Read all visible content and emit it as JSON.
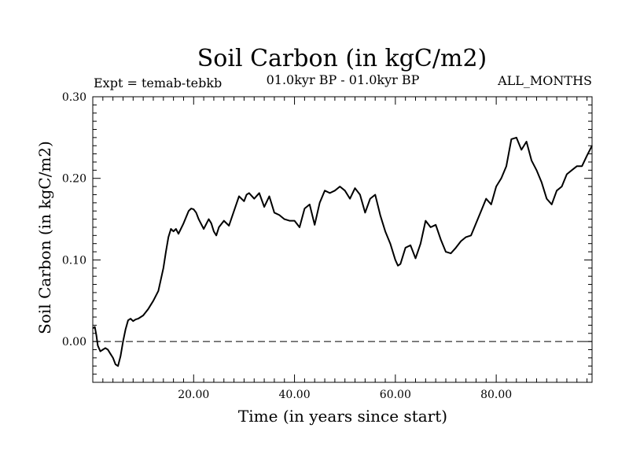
{
  "chart_data": {
    "type": "line",
    "title": "Soil Carbon (in kgC/m2)",
    "subtitle_left": "Expt = temab-tebkb",
    "subtitle_center": "01.0kyr BP - 01.0kyr BP",
    "subtitle_right": "ALL_MONTHS",
    "xlabel": "Time (in years since start)",
    "ylabel": "Soil Carbon (in kgC/m2)",
    "xlim": [
      0,
      99
    ],
    "ylim": [
      -0.05,
      0.3
    ],
    "xticks": [
      20,
      40,
      60,
      80
    ],
    "xtick_labels": [
      "20.00",
      "40.00",
      "60.00",
      "80.00"
    ],
    "yticks": [
      0.0,
      0.1,
      0.2,
      0.3
    ],
    "ytick_labels": [
      "0.00",
      "0.10",
      "0.20",
      "0.30"
    ],
    "reference_line": {
      "y": 0.0,
      "style": "dashed"
    },
    "grid": false,
    "series": [
      {
        "x": [
          0,
          0.4,
          0.7,
          1,
          1.5,
          2,
          2.5,
          3,
          3.5,
          4,
          4.5,
          5,
          5.5,
          6,
          6.5,
          7,
          7.5,
          8,
          8.5,
          9,
          10,
          11,
          12,
          13,
          14,
          14.5,
          15,
          15.5,
          16,
          16.5,
          17,
          18,
          19,
          19.5,
          20,
          20.5,
          21,
          22,
          23,
          23.5,
          24,
          24.5,
          25,
          26,
          27,
          28,
          29,
          30,
          30.5,
          31,
          32,
          33,
          34,
          35,
          36,
          37,
          38,
          39,
          40,
          41,
          42,
          43,
          44,
          45,
          46,
          47,
          48,
          49,
          50,
          51,
          52,
          53,
          54,
          55,
          56,
          57,
          58,
          59,
          60,
          60.5,
          61,
          62,
          63,
          64,
          65,
          66,
          67,
          68,
          69,
          70,
          71,
          72,
          73,
          74,
          75,
          76,
          77,
          78,
          79,
          80,
          81,
          82,
          83,
          84,
          85,
          86,
          87,
          88,
          89,
          90,
          91,
          92,
          93,
          94,
          95,
          96,
          97,
          98,
          99
        ],
        "y": [
          0.016,
          0.018,
          0.008,
          -0.005,
          -0.012,
          -0.01,
          -0.008,
          -0.01,
          -0.015,
          -0.02,
          -0.028,
          -0.03,
          -0.018,
          0.0,
          0.015,
          0.026,
          0.028,
          0.025,
          0.027,
          0.028,
          0.032,
          0.04,
          0.05,
          0.062,
          0.09,
          0.11,
          0.128,
          0.138,
          0.135,
          0.138,
          0.132,
          0.145,
          0.16,
          0.163,
          0.162,
          0.158,
          0.15,
          0.138,
          0.15,
          0.145,
          0.135,
          0.13,
          0.14,
          0.148,
          0.142,
          0.16,
          0.178,
          0.172,
          0.18,
          0.182,
          0.175,
          0.182,
          0.165,
          0.178,
          0.158,
          0.155,
          0.15,
          0.148,
          0.148,
          0.14,
          0.163,
          0.168,
          0.143,
          0.17,
          0.185,
          0.182,
          0.185,
          0.19,
          0.185,
          0.175,
          0.188,
          0.18,
          0.158,
          0.175,
          0.18,
          0.155,
          0.135,
          0.12,
          0.1,
          0.093,
          0.095,
          0.115,
          0.118,
          0.102,
          0.12,
          0.148,
          0.14,
          0.143,
          0.125,
          0.11,
          0.108,
          0.115,
          0.123,
          0.128,
          0.13,
          0.145,
          0.16,
          0.175,
          0.168,
          0.19,
          0.2,
          0.215,
          0.248,
          0.25,
          0.235,
          0.245,
          0.222,
          0.21,
          0.195,
          0.175,
          0.168,
          0.185,
          0.19,
          0.205,
          0.21,
          0.215,
          0.215,
          0.228,
          0.24
        ]
      }
    ]
  }
}
